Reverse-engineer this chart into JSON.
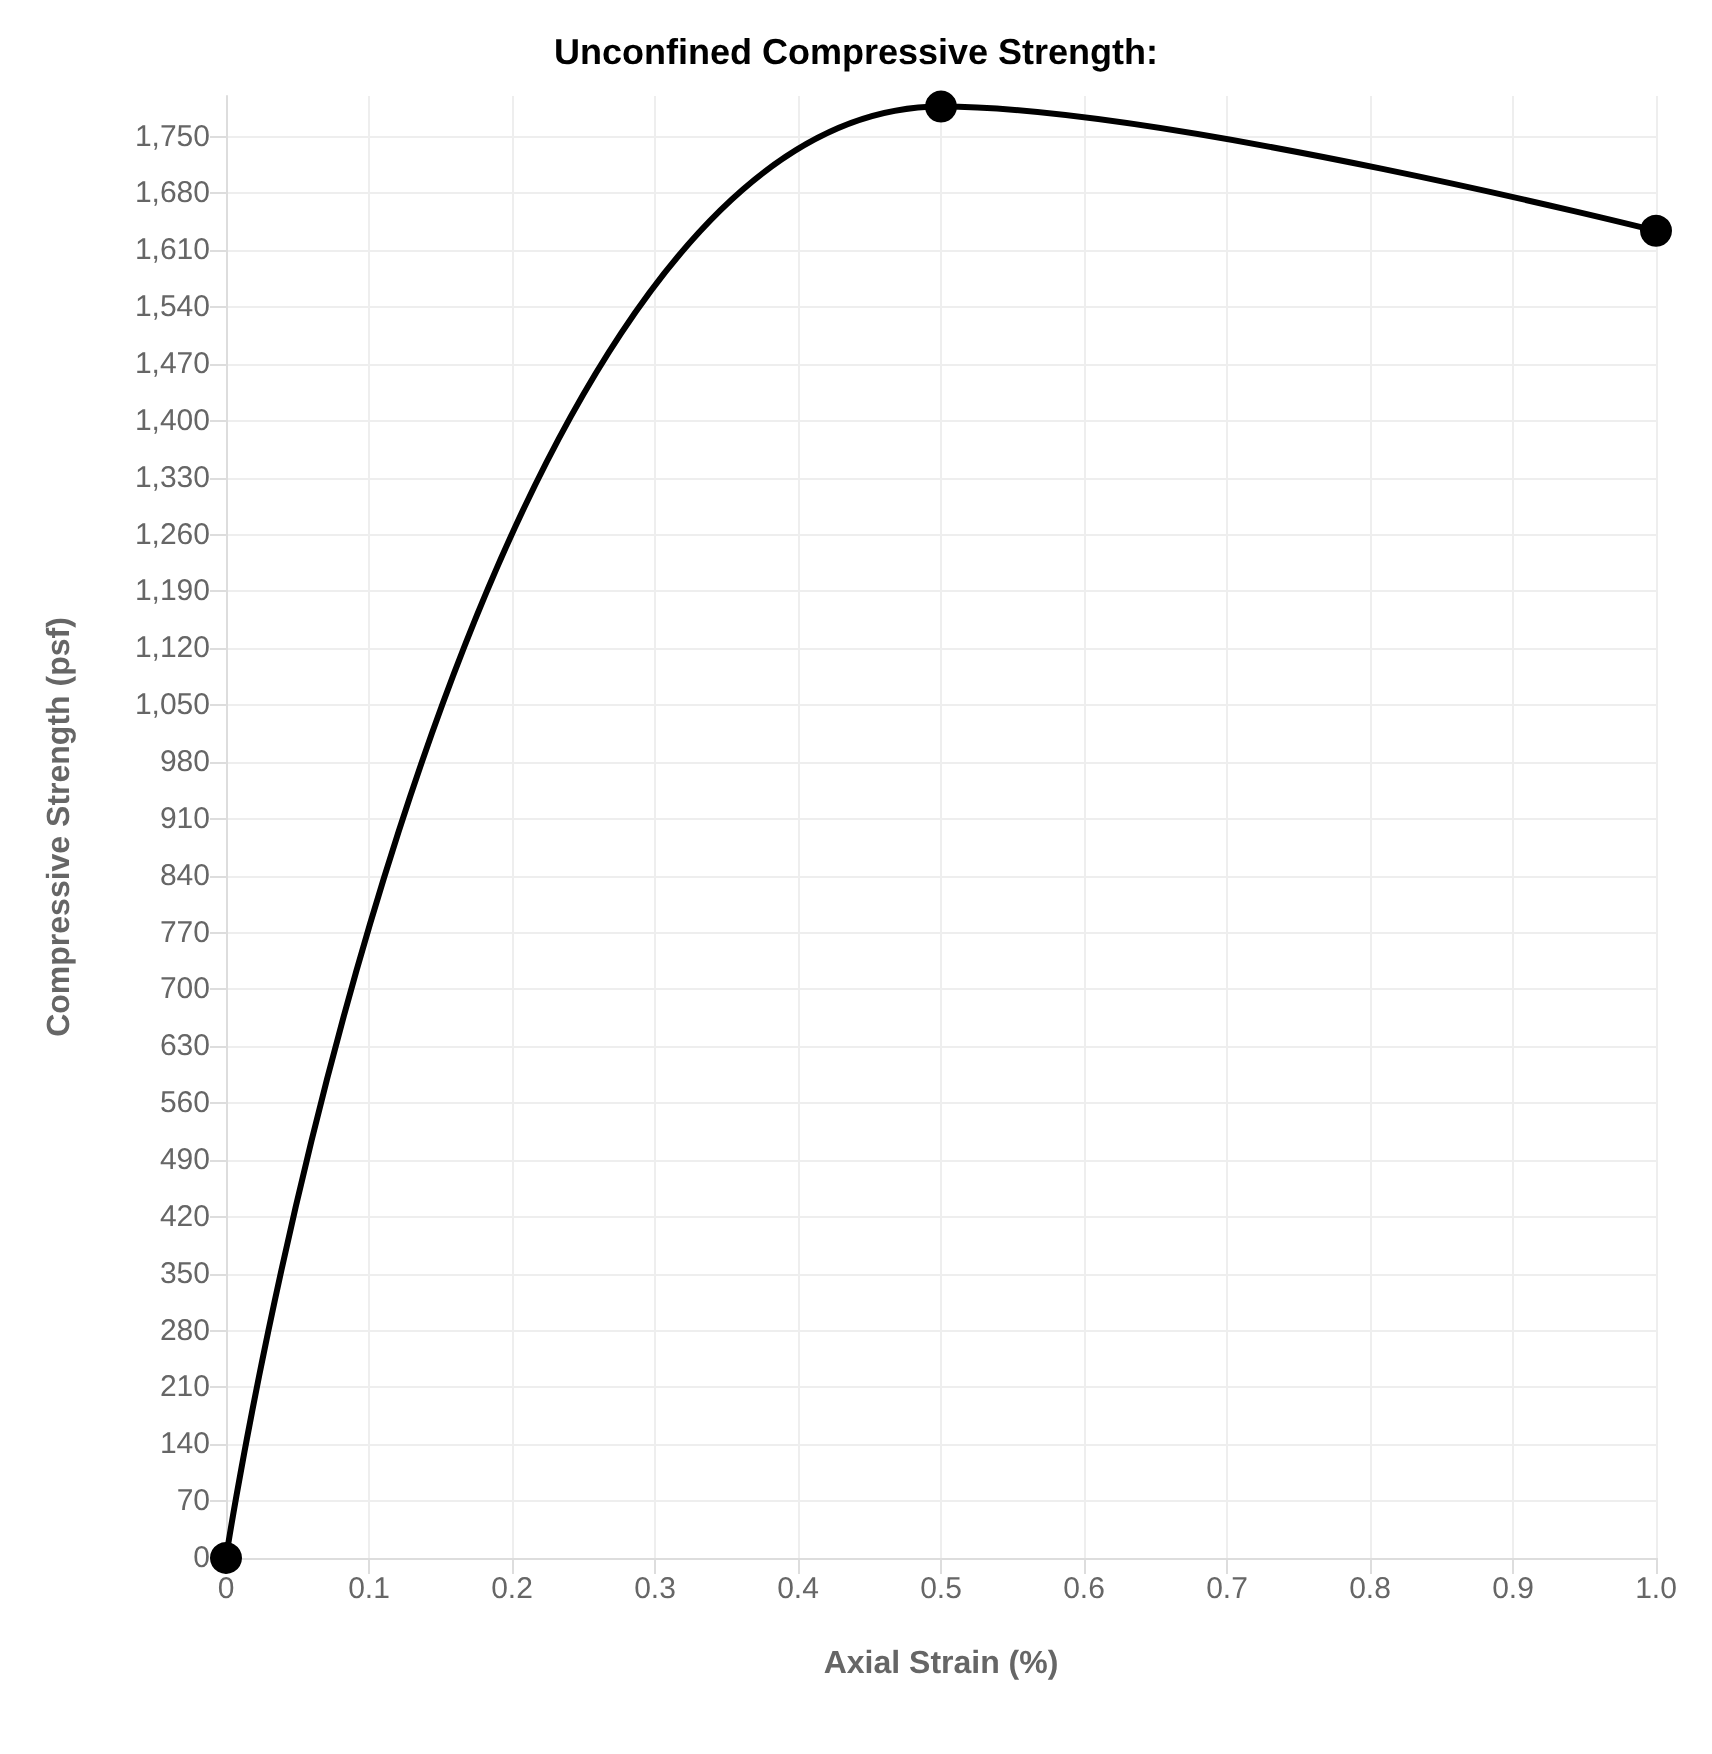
{
  "chart_data": {
    "type": "line",
    "title": "Unconfined Compressive Strength:",
    "xlabel": "Axial Strain (%)",
    "ylabel": "Compressive Strength (psf)",
    "x": [
      0,
      0.5,
      1
    ],
    "series": [
      {
        "color": "#000000",
        "values": [
          0,
          1787,
          1634
        ]
      }
    ],
    "xlim": [
      0,
      1
    ],
    "xticks": [
      0,
      0.1,
      0.2,
      0.3,
      0.4,
      0.5,
      0.6,
      0.7,
      0.8,
      0.9,
      {
        "value": 1,
        "label": "1.0"
      }
    ],
    "ylim": [
      0,
      1800
    ],
    "yticks": [
      0,
      70,
      140,
      210,
      280,
      350,
      420,
      490,
      560,
      630,
      700,
      770,
      840,
      910,
      980,
      {
        "value": 1050,
        "label": "1,050"
      },
      {
        "value": 1120,
        "label": "1,120"
      },
      {
        "value": 1190,
        "label": "1,190"
      },
      {
        "value": 1260,
        "label": "1,260"
      },
      {
        "value": 1330,
        "label": "1,330"
      },
      {
        "value": 1400,
        "label": "1,400"
      },
      {
        "value": 1470,
        "label": "1,470"
      },
      {
        "value": 1540,
        "label": "1,540"
      },
      {
        "value": 1610,
        "label": "1,610"
      },
      {
        "value": 1680,
        "label": "1,680"
      },
      {
        "value": 1750,
        "label": "1,750"
      }
    ],
    "grid": true,
    "marker": "circle",
    "line_style": "solid"
  }
}
